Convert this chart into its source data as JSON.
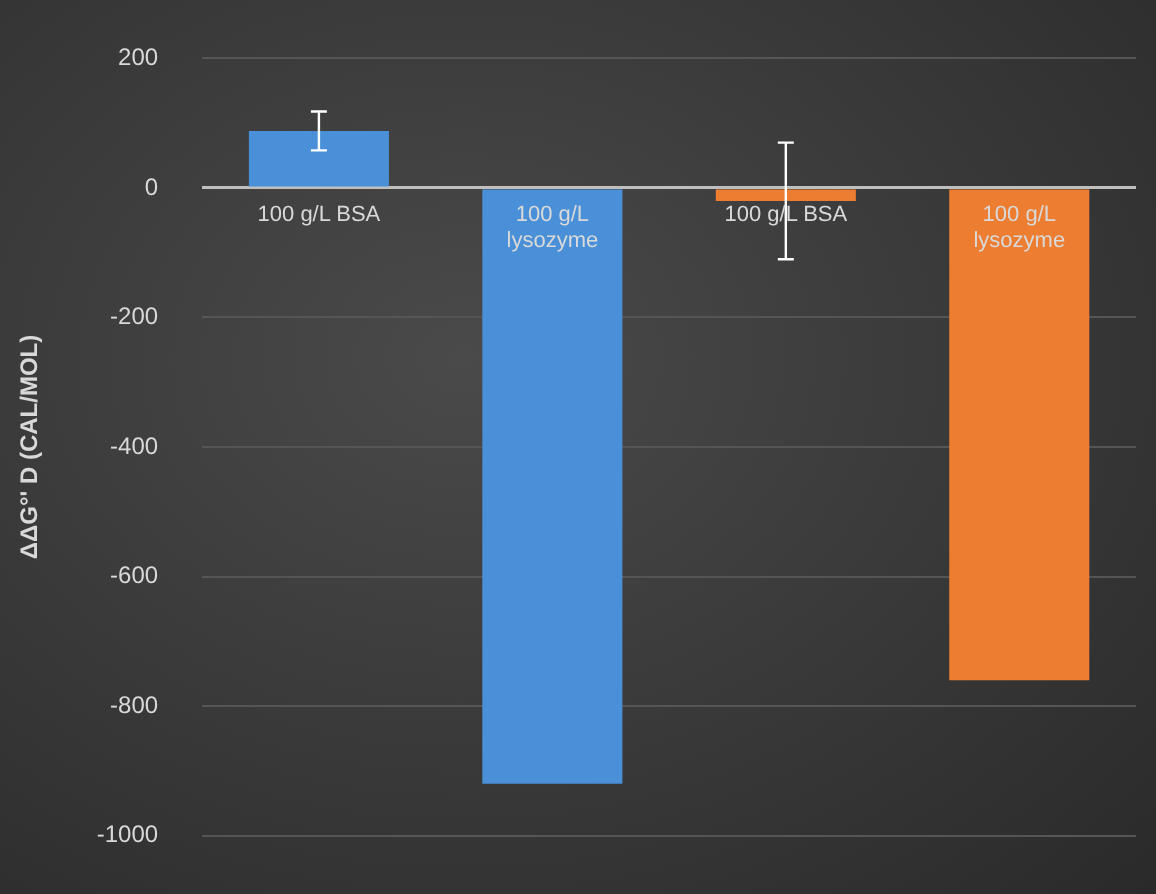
{
  "chart_data": {
    "type": "bar",
    "ylabel": "ΔΔG°' D (CAL/MOL)",
    "categories": [
      "100 g/L BSA",
      "100 g/L lysozyme",
      "100 g/L BSA",
      "100 g/L lysozyme"
    ],
    "values": [
      88,
      -920,
      -20,
      -760
    ],
    "colors": [
      "#4a90d9",
      "#4a90d9",
      "#ed7d31",
      "#ed7d31"
    ],
    "errors": [
      30,
      null,
      90,
      null
    ],
    "ylim": [
      -1000,
      200
    ],
    "yticks": [
      -1000,
      -800,
      -600,
      -400,
      -200,
      0,
      200
    ],
    "grid": "y",
    "legend": false
  }
}
